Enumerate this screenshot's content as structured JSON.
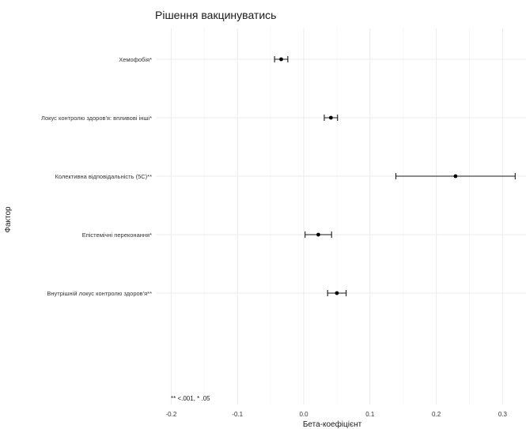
{
  "chart_data": {
    "type": "scatter",
    "subtype": "forest-plot-with-error-bars",
    "title": "Рішення вакцинуватись",
    "xlabel": "Бета-коефіцієнт",
    "ylabel": "Фактор",
    "xlim": [
      -0.21,
      0.33
    ],
    "xticks": [
      -0.2,
      -0.1,
      0.0,
      0.1,
      0.2,
      0.3
    ],
    "xtick_labels": [
      "-0.2",
      "-0.1",
      "0.0",
      "0.1",
      "0.2",
      "0.3"
    ],
    "grid": true,
    "legend": "none",
    "note": "** <.001, * .05",
    "point_color": "#000000",
    "categories": [
      "Хемофобія*",
      "Локус контролю здоров'я: впливові інші*",
      "Колективна відповідальність (5С)**",
      "Епістемічні переконання*",
      "Внутрішній локус контролю здоров'я**"
    ],
    "estimates": [
      -0.034,
      0.041,
      0.229,
      0.022,
      0.05
    ],
    "ci_low": [
      -0.044,
      0.031,
      0.139,
      0.002,
      0.036
    ],
    "ci_high": [
      -0.024,
      0.051,
      0.319,
      0.042,
      0.064
    ]
  }
}
